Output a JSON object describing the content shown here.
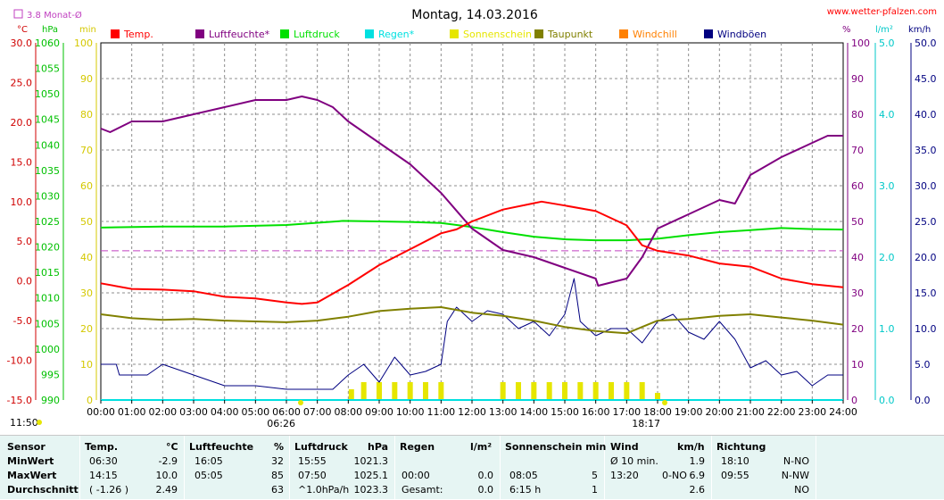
{
  "header": {
    "title": "Montag, 14.03.2016",
    "site": "www.wetter-pfalzen.com",
    "avg_label": "3.8 Monat-Ø",
    "unit_left": [
      "°C",
      "hPa",
      "min"
    ],
    "unit_right": [
      "%",
      "l/m²",
      "km/h"
    ],
    "sunrise": "06:26",
    "sunset": "18:17",
    "daylength": "11:50"
  },
  "colors": {
    "temp": "#ff0000",
    "hum": "#800080",
    "press": "#00e000",
    "rain": "#00e0e0",
    "sun": "#e6e600",
    "dew": "#808000",
    "windchill": "#ff8000",
    "gust": "#000080",
    "avgline": "#c040c0",
    "axis_temp": "#d00000",
    "axis_press": "#00c000",
    "axis_min": "#d4c800",
    "axis_hum": "#800080",
    "axis_rain": "#00c8c8",
    "axis_wind": "#000080"
  },
  "chart_data": {
    "type": "line",
    "title": "Montag, 14.03.2016",
    "legend": [
      "Temp.",
      "Luftfeuchte*",
      "Luftdruck",
      "Regen*",
      "Sonnenschein",
      "Taupunkt",
      "Windchill",
      "Windböen"
    ],
    "x_ticks": [
      "00:00",
      "01:00",
      "02:00",
      "03:00",
      "04:00",
      "05:00",
      "06:00",
      "07:00",
      "08:00",
      "09:00",
      "10:00",
      "11:00",
      "12:00",
      "13:00",
      "14:00",
      "15:00",
      "16:00",
      "17:00",
      "18:00",
      "19:00",
      "20:00",
      "21:00",
      "22:00",
      "23:00",
      "24:00"
    ],
    "axes": {
      "temp": {
        "unit": "°C",
        "range": [
          -15,
          30
        ],
        "ticks": [
          "30.0",
          "25.0",
          "20.0",
          "15.0",
          "10.0",
          "5.0",
          "0.0",
          "-5.0",
          "-10.0",
          "-15.0"
        ]
      },
      "pressure": {
        "unit": "hPa",
        "range": [
          990,
          1060
        ],
        "ticks": [
          "1060",
          "1055",
          "1050",
          "1045",
          "1040",
          "1035",
          "1030",
          "1025",
          "1020",
          "1015",
          "1010",
          "1005",
          "1000",
          "995",
          "990"
        ]
      },
      "minutes": {
        "unit": "min",
        "range": [
          0,
          100
        ],
        "ticks": [
          "100",
          "90",
          "80",
          "70",
          "60",
          "50",
          "40",
          "30",
          "20",
          "10",
          "0"
        ]
      },
      "humidity": {
        "unit": "%",
        "range": [
          0,
          100
        ],
        "ticks": [
          "100",
          "90",
          "80",
          "70",
          "60",
          "50",
          "40",
          "30",
          "20",
          "10",
          "0"
        ]
      },
      "rain": {
        "unit": "l/m²",
        "range": [
          0,
          5
        ],
        "ticks": [
          "5.0",
          "4.0",
          "3.0",
          "2.0",
          "1.0",
          "0.0"
        ]
      },
      "wind": {
        "unit": "km/h",
        "range": [
          0,
          50
        ],
        "ticks": [
          "50.0",
          "45.0",
          "40.0",
          "35.0",
          "30.0",
          "25.0",
          "20.0",
          "15.0",
          "10.0",
          "5.0",
          "0.0"
        ]
      }
    },
    "month_avg_temp": 3.8,
    "temperature": {
      "x": [
        0,
        1,
        2,
        3,
        4,
        5,
        6,
        6.5,
        7,
        8,
        9,
        10,
        11,
        11.5,
        12,
        13,
        14,
        14.25,
        15,
        16,
        17,
        17.5,
        18,
        19,
        20,
        21,
        22,
        23,
        24
      ],
      "y": [
        -0.3,
        -1.0,
        -1.1,
        -1.3,
        -2.0,
        -2.2,
        -2.7,
        -2.9,
        -2.7,
        -0.5,
        2.0,
        4.0,
        6.0,
        6.5,
        7.5,
        9.0,
        9.8,
        10.0,
        9.5,
        8.8,
        7.0,
        4.5,
        3.8,
        3.2,
        2.2,
        1.8,
        0.3,
        -0.4,
        -0.8
      ]
    },
    "humidity": {
      "x": [
        0,
        0.3,
        1,
        2,
        2.5,
        3,
        4,
        5,
        5.5,
        6,
        6.5,
        7,
        7.5,
        8,
        9,
        10,
        11,
        12,
        13,
        14,
        15,
        16,
        16.08,
        17,
        17.5,
        18,
        19,
        20,
        20.5,
        21,
        22,
        23,
        23.5,
        24
      ],
      "y": [
        76,
        75,
        78,
        78,
        79,
        80,
        82,
        84,
        84,
        84,
        85,
        84,
        82,
        78,
        72,
        66,
        58,
        48,
        42,
        40,
        37,
        34,
        32,
        34,
        40,
        48,
        52,
        56,
        55,
        63,
        68,
        72,
        74,
        74
      ]
    },
    "pressure": {
      "x": [
        0,
        2,
        4,
        6,
        7.83,
        9,
        10,
        11,
        12,
        13,
        14,
        15,
        16,
        17,
        18,
        19,
        20,
        21,
        22,
        23,
        24
      ],
      "y": [
        1023.8,
        1024.0,
        1024.0,
        1024.3,
        1025.1,
        1025.0,
        1024.9,
        1024.7,
        1023.9,
        1022.9,
        1022.0,
        1021.5,
        1021.3,
        1021.3,
        1021.6,
        1022.3,
        1022.9,
        1023.3,
        1023.7,
        1023.5,
        1023.4
      ]
    },
    "dewpoint": {
      "x": [
        0,
        1,
        2,
        3,
        4,
        5,
        6,
        7,
        8,
        9,
        10,
        11,
        12,
        13,
        14,
        15,
        16,
        17,
        18,
        19,
        20,
        21,
        22,
        23,
        24
      ],
      "y": [
        -4.2,
        -4.7,
        -4.9,
        -4.8,
        -5.0,
        -5.1,
        -5.2,
        -5.0,
        -4.5,
        -3.8,
        -3.5,
        -3.3,
        -4.0,
        -4.4,
        -5.0,
        -5.8,
        -6.3,
        -6.6,
        -5.0,
        -4.8,
        -4.4,
        -4.2,
        -4.6,
        -5.0,
        -5.5
      ]
    },
    "wind_gusts": {
      "x": [
        0,
        0.5,
        0.6,
        1.5,
        2,
        3,
        4,
        5,
        6,
        7,
        7.5,
        8,
        8.5,
        9,
        9.5,
        10,
        10.5,
        11,
        11.2,
        11.5,
        12,
        12.5,
        13,
        13.5,
        14,
        14.5,
        15,
        15.3,
        15.5,
        16,
        16.5,
        17,
        17.5,
        18,
        18.5,
        19,
        19.5,
        20,
        20.5,
        21,
        21.5,
        22,
        22.5,
        23,
        23.5,
        24
      ],
      "y": [
        5,
        5,
        3.5,
        3.5,
        5,
        3.5,
        2,
        2,
        1.5,
        1.5,
        1.5,
        3.5,
        5,
        2.5,
        6,
        3.5,
        4,
        5,
        11,
        13,
        11,
        12.5,
        12,
        10,
        11,
        9,
        12,
        17,
        11,
        9,
        10,
        10,
        8,
        11,
        12,
        9.5,
        8.5,
        11,
        8.5,
        4.5,
        5.5,
        3.5,
        4,
        2,
        3.5,
        3.5
      ]
    },
    "sunshine_minutes": {
      "x": [
        8.1,
        8.5,
        9,
        9.5,
        10,
        10.5,
        11,
        11.5,
        12,
        12.5,
        13,
        13.5,
        14,
        14.5,
        15,
        15.5,
        16,
        16.5,
        17,
        17.5,
        18
      ],
      "y": [
        3,
        5,
        5,
        5,
        5,
        5,
        5,
        0,
        0,
        0,
        5,
        5,
        5,
        5,
        5,
        5,
        5,
        5,
        5,
        5,
        2
      ]
    },
    "rain": {
      "x": [
        0,
        24
      ],
      "y": [
        0,
        0
      ]
    }
  },
  "stats": {
    "headers": {
      "sensor": "Sensor",
      "temp": "Temp.",
      "temp_unit": "°C",
      "hum": "Luftfeuchte",
      "hum_unit": "%",
      "press": "Luftdruck",
      "press_unit": "hPa",
      "rain": "Regen",
      "rain_unit": "l/m²",
      "sun": "Sonnenschein min",
      "wind": "Wind",
      "wind_unit": "km/h",
      "dir": "Richtung"
    },
    "rows": [
      {
        "label": "MinWert",
        "temp_time": "06:30",
        "temp_val": "-2.9",
        "hum_time": "16:05",
        "hum_val": "32",
        "press_time": "15:55",
        "press_val": "1021.3",
        "rain_time": "",
        "rain_val": "",
        "sun_time": "",
        "sun_val": "",
        "wind_time": "Ø 10 min.",
        "wind_dir": "",
        "wind_val": "1.9",
        "dir_time": "18:10",
        "dir_val": "N-NO"
      },
      {
        "label": "MaxWert",
        "temp_time": "14:15",
        "temp_val": "10.0",
        "hum_time": "05:05",
        "hum_val": "85",
        "press_time": "07:50",
        "press_val": "1025.1",
        "rain_time": "00:00",
        "rain_val": "0.0",
        "sun_time": "08:05",
        "sun_val": "5",
        "wind_time": "13:20",
        "wind_dir": "0-NO",
        "wind_val": "6.9",
        "dir_time": "09:55",
        "dir_val": "N-NW"
      },
      {
        "label": "Durchschnitt",
        "temp_time": "( -1.26 )",
        "temp_val": "2.49",
        "hum_time": "",
        "hum_val": "63",
        "press_time": "^1.0hPa/h",
        "press_val": "1023.3",
        "rain_time": "Gesamt:",
        "rain_val": "0.0",
        "sun_time": "6:15 h",
        "sun_val": "1",
        "wind_time": "",
        "wind_dir": "",
        "wind_val": "2.6",
        "dir_time": "",
        "dir_val": "NO"
      }
    ]
  }
}
